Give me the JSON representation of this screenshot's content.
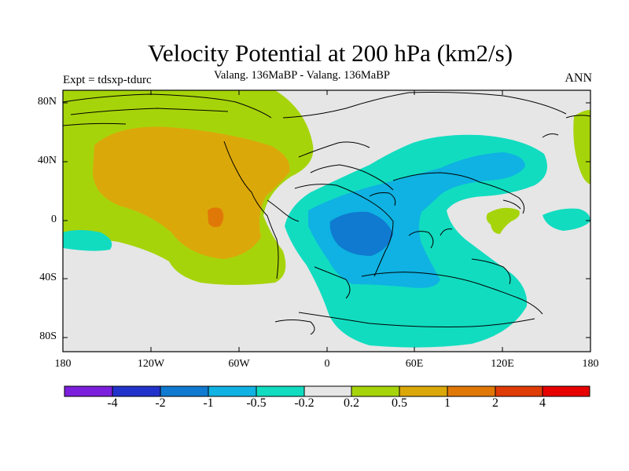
{
  "title": "Velocity Potential at 200 hPa (km2/s)",
  "subtitle": "Valang. 136MaBP - Valang.  136MaBP",
  "left_label": "Expt = tdsxp-tdurc",
  "right_label": "ANN",
  "lat_ticks": [
    "80N",
    "40N",
    "0",
    "40S",
    "80S"
  ],
  "lon_ticks": [
    "180",
    "120W",
    "60W",
    "0",
    "60E",
    "120E",
    "180"
  ],
  "colorbar": {
    "colors": [
      "#7b1fdc",
      "#2233cc",
      "#0f7ad0",
      "#0fb2e2",
      "#11dcc0",
      "#e6e6e6",
      "#a6d40a",
      "#dba80a",
      "#e07808",
      "#e03c08",
      "#e60000"
    ],
    "labels": [
      "-4",
      "-2",
      "-1",
      "-0.5",
      "-0.2",
      "0.2",
      "0.5",
      "1",
      "2",
      "4"
    ]
  },
  "colors": {
    "background_field": "#e6e6e6",
    "level_0_2": "#a6d40a",
    "level_0_5": "#dba80a",
    "level_1": "#e07808",
    "level_neg_0_2": "#11dcc0",
    "level_neg_0_5": "#0fb2e2",
    "level_neg_1": "#0f7ad0"
  }
}
